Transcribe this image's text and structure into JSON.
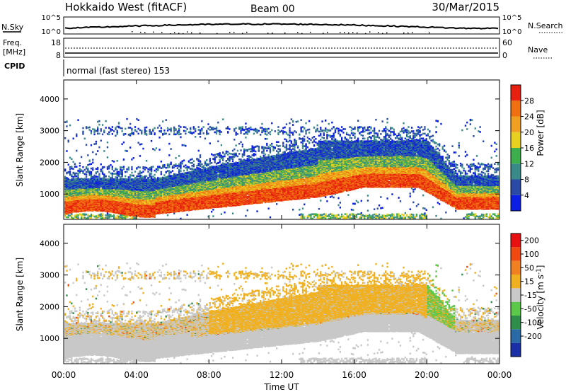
{
  "header": {
    "station": "Hokkaido West (fitACF)",
    "beam": "Beam 00",
    "date": "30/Mar/2015"
  },
  "status_panels": {
    "nsky_label": "N.Sky",
    "nsky_ticks": [
      "10^5",
      "10^0"
    ],
    "nsearch_label": "N.Search",
    "freq_label_1": "Freq.",
    "freq_label_2": "[MHz]",
    "freq_ticks": [
      "18",
      "8"
    ],
    "nave_label": "Nave",
    "nave_ticks": [
      "60",
      "0"
    ],
    "cpid_label": "CPID",
    "cpid_text": "normal (fast stereo) 153"
  },
  "colors": {
    "power_scale": [
      "#0a1ee6",
      "#2a4aa6",
      "#3a8a8a",
      "#3cae4c",
      "#e8d020",
      "#f0a020",
      "#f07010",
      "#e82010"
    ],
    "velocity_scale": [
      "#1a2ea8",
      "#2a6aa6",
      "#2e8e4a",
      "#5cc84a",
      "#c8c8c8",
      "#f0b020",
      "#f08020",
      "#f04a10",
      "#e81010"
    ],
    "ground_scatter": "#c8c8c8"
  },
  "chart_data": [
    {
      "type": "heatmap",
      "name": "power",
      "xlabel": "",
      "ylabel": "Slant Range [km]",
      "x_range_hours": [
        0,
        24
      ],
      "ylim": [
        200,
        4600
      ],
      "y_ticks": [
        "1000",
        "2000",
        "3000",
        "4000"
      ],
      "colorbar_label": "Power [dB]",
      "colorbar_ticks": [
        "4",
        "8",
        "12",
        "16",
        "20",
        "24",
        "28"
      ],
      "colorbar_range": [
        0,
        32
      ]
    },
    {
      "type": "heatmap",
      "name": "velocity",
      "xlabel": "Time UT",
      "ylabel": "Slant Range [km]",
      "x_range_hours": [
        0,
        24
      ],
      "x_ticks": [
        "00:00",
        "04:00",
        "08:00",
        "12:00",
        "16:00",
        "20:00",
        "00:00"
      ],
      "ylim": [
        200,
        4600
      ],
      "y_ticks": [
        "1000",
        "2000",
        "3000",
        "4000"
      ],
      "colorbar_label": "Velocity [m s",
      "colorbar_label_sup": "-1",
      "colorbar_label_end": "]",
      "colorbar_ticks": [
        "200",
        "100",
        "50",
        "15",
        "-15",
        "-50",
        "-100",
        "-200"
      ]
    }
  ]
}
